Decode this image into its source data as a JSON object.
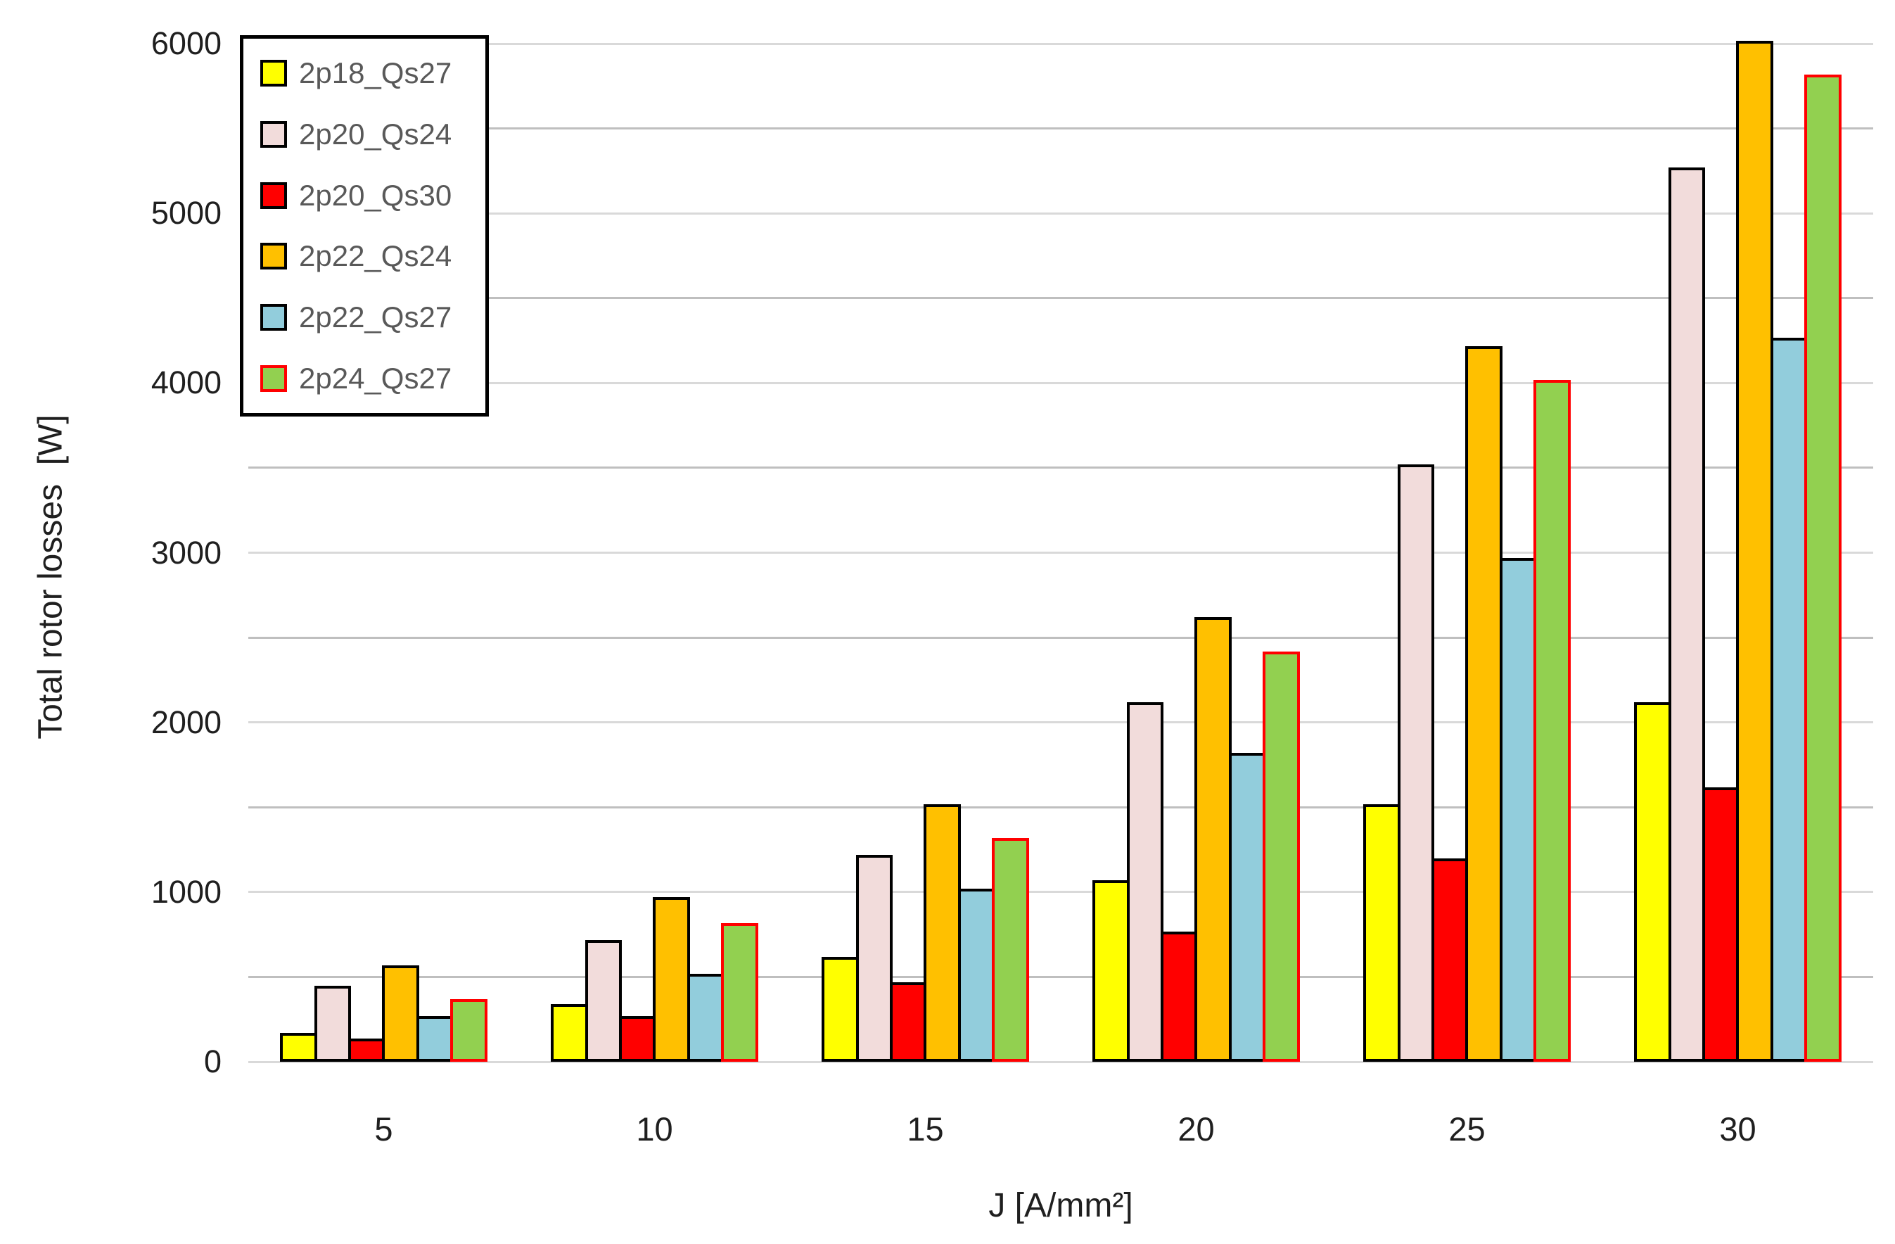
{
  "chart_data": {
    "type": "bar",
    "title": "",
    "xlabel": "J [A/mm²]",
    "ylabel": "Total rotor losses  [W]",
    "categories": [
      5,
      10,
      15,
      20,
      25,
      30
    ],
    "series": [
      {
        "name": "2p18_Qs27",
        "fill": "#FFFF00",
        "border": "#000000",
        "values": [
          150,
          320,
          600,
          1050,
          1500,
          2100
        ]
      },
      {
        "name": "2p20_Qs24",
        "fill": "#F2DCDB",
        "border": "#000000",
        "values": [
          430,
          700,
          1200,
          2100,
          3500,
          5250
        ]
      },
      {
        "name": "2p20_Qs30",
        "fill": "#FF0000",
        "border": "#000000",
        "values": [
          120,
          250,
          450,
          750,
          1180,
          1600
        ]
      },
      {
        "name": "2p22_Qs24",
        "fill": "#FFC000",
        "border": "#000000",
        "values": [
          550,
          950,
          1500,
          2600,
          4200,
          6000
        ]
      },
      {
        "name": "2p22_Qs27",
        "fill": "#92CDDC",
        "border": "#000000",
        "values": [
          250,
          500,
          1000,
          1800,
          2950,
          4250
        ]
      },
      {
        "name": "2p24_Qs27",
        "fill": "#92D050",
        "border": "#FF0000",
        "values": [
          350,
          800,
          1300,
          2400,
          4000,
          5800
        ]
      }
    ],
    "ylim": [
      0,
      6000
    ],
    "yticks": [
      0,
      1000,
      2000,
      3000,
      4000,
      5000,
      6000
    ],
    "gridline_step": 500,
    "grid_on": true,
    "legend_position": "top-left",
    "colors": {
      "gridline_major": "#D9D9D9",
      "gridline_minor": "#BFBFBF",
      "legend_text": "#595959",
      "axis_text": "#1f1f1f",
      "background": "#ffffff"
    }
  }
}
